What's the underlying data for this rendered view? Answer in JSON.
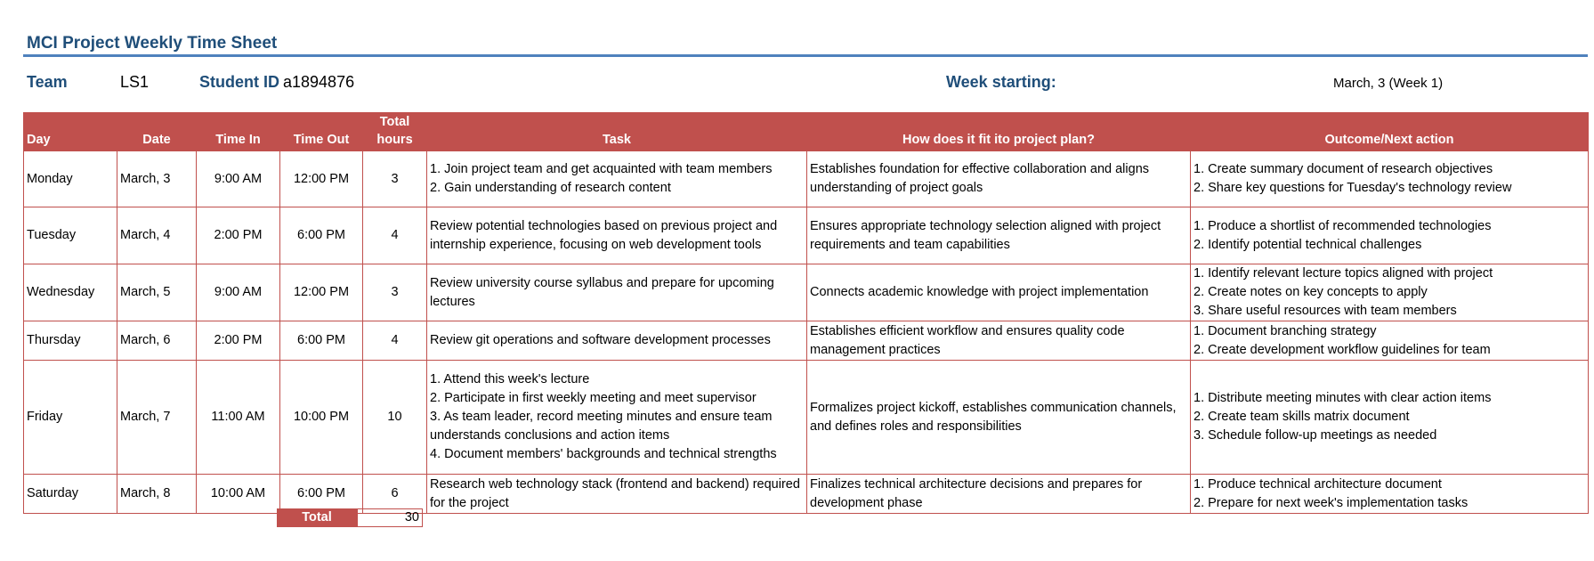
{
  "title": "MCI Project Weekly Time Sheet",
  "header_info": {
    "team_label": "Team",
    "team_value": "LS1",
    "student_id_label": "Student ID",
    "student_id_value": "a1894876",
    "week_label": "Week starting:",
    "week_value": "March, 3 (Week 1)"
  },
  "columns": {
    "day": "Day",
    "date": "Date",
    "time_in": "Time In",
    "time_out": "Time Out",
    "total_hours_line1": "Total",
    "total_hours_line2": "hours",
    "task": "Task",
    "fit": "How does it fit ito project plan?",
    "outcome": "Outcome/Next action"
  },
  "rows": [
    {
      "day": "Monday",
      "date": "March, 3",
      "time_in": "9:00 AM",
      "time_out": "12:00 PM",
      "hours": "3",
      "task": "1. Join project team and get acquainted with team members\n2. Gain understanding of research content",
      "fit": "Establishes foundation for effective collaboration and aligns understanding of project goals",
      "outcome": "1. Create summary document of research objectives\n2. Share key questions for Tuesday's technology review"
    },
    {
      "day": "Tuesday",
      "date": "March, 4",
      "time_in": "2:00 PM",
      "time_out": "6:00 PM",
      "hours": "4",
      "task": "Review potential technologies based on previous project and internship experience, focusing on web development tools",
      "fit": "Ensures appropriate technology selection aligned with project requirements and team capabilities",
      "outcome": "1. Produce a shortlist of recommended technologies\n2. Identify potential technical challenges"
    },
    {
      "day": "Wednesday",
      "date": "March, 5",
      "time_in": "9:00 AM",
      "time_out": "12:00 PM",
      "hours": "3",
      "task": "Review university course syllabus and prepare for upcoming lectures",
      "fit": "Connects academic knowledge with project implementation",
      "outcome": "1. Identify relevant lecture topics aligned with project\n2. Create notes on key concepts to apply\n3. Share useful resources with team members"
    },
    {
      "day": "Thursday",
      "date": "March, 6",
      "time_in": "2:00 PM",
      "time_out": "6:00 PM",
      "hours": "4",
      "task": "Review git operations and software development processes",
      "fit": "Establishes efficient workflow and ensures quality code management practices",
      "outcome": "1. Document branching strategy\n2. Create development workflow guidelines for team"
    },
    {
      "day": "Friday",
      "date": "March, 7",
      "time_in": "11:00 AM",
      "time_out": "10:00 PM",
      "hours": "10",
      "task": "1. Attend this week's lecture\n2. Participate in first weekly meeting and meet supervisor\n3. As team leader, record meeting minutes and ensure team understands conclusions and action items\n4. Document members' backgrounds and technical strengths",
      "fit": "Formalizes project kickoff, establishes communication channels, and defines roles and responsibilities",
      "outcome": "1. Distribute meeting minutes with clear action items\n2. Create team skills matrix document\n3. Schedule follow-up meetings as needed"
    },
    {
      "day": "Saturday",
      "date": "March, 8",
      "time_in": "10:00 AM",
      "time_out": "6:00 PM",
      "hours": "6",
      "task": "Research web technology stack (frontend and backend) required for the project",
      "fit": "Finalizes technical architecture decisions and prepares for development phase",
      "outcome": "1. Produce technical architecture document\n2. Prepare for next week's implementation tasks"
    }
  ],
  "total": {
    "label": "Total",
    "value": "30"
  }
}
